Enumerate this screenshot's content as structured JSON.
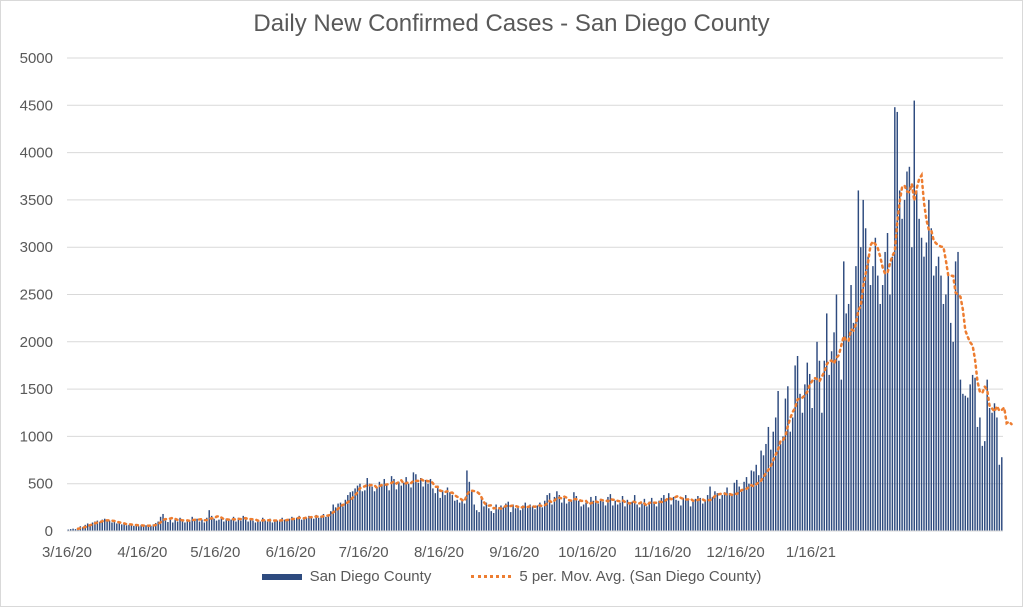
{
  "chart_data": {
    "type": "bar",
    "title": "Daily New Confirmed Cases - San Diego County",
    "xlabel": "",
    "ylabel": "",
    "ylim": [
      0,
      5000
    ],
    "yticks": [
      "0",
      "500",
      "1000",
      "1500",
      "2000",
      "2500",
      "3000",
      "3500",
      "4000",
      "4500",
      "5000"
    ],
    "xticks": [
      "3/16/20",
      "4/16/20",
      "5/16/20",
      "6/16/20",
      "7/16/20",
      "8/16/20",
      "9/16/20",
      "10/16/20",
      "11/16/20",
      "12/16/20",
      "1/16/21"
    ],
    "start_date": "3/16/20",
    "legend_position": "bottom",
    "colors": {
      "bars": "#2e4b7f",
      "moving_average": "#ed7d31",
      "grid": "#d9d9d9"
    },
    "series": [
      {
        "name": "San Diego County",
        "kind": "bar",
        "values": [
          15,
          20,
          25,
          20,
          35,
          50,
          40,
          65,
          80,
          70,
          90,
          100,
          110,
          95,
          120,
          130,
          105,
          110,
          90,
          95,
          80,
          85,
          70,
          75,
          60,
          65,
          70,
          55,
          60,
          50,
          65,
          55,
          60,
          50,
          55,
          70,
          85,
          100,
          150,
          180,
          110,
          95,
          120,
          90,
          130,
          100,
          140,
          110,
          90,
          120,
          100,
          150,
          110,
          130,
          100,
          120,
          90,
          140,
          220,
          160,
          130,
          110,
          120,
          140,
          100,
          130,
          110,
          120,
          150,
          100,
          140,
          110,
          160,
          120,
          100,
          130,
          110,
          90,
          120,
          100,
          140,
          110,
          100,
          130,
          90,
          120,
          110,
          100,
          140,
          120,
          110,
          130,
          150,
          120,
          140,
          160,
          120,
          130,
          140,
          160,
          150,
          130,
          170,
          140,
          160,
          180,
          150,
          170,
          210,
          280,
          250,
          290,
          300,
          260,
          330,
          380,
          410,
          420,
          450,
          480,
          500,
          420,
          430,
          560,
          500,
          470,
          420,
          460,
          520,
          480,
          550,
          500,
          430,
          580,
          550,
          440,
          520,
          480,
          510,
          570,
          500,
          460,
          620,
          600,
          510,
          560,
          470,
          540,
          500,
          550,
          450,
          400,
          480,
          350,
          430,
          380,
          460,
          410,
          380,
          320,
          330,
          300,
          340,
          290,
          640,
          520,
          420,
          280,
          220,
          200,
          350,
          260,
          300,
          240,
          210,
          190,
          280,
          230,
          270,
          250,
          290,
          310,
          200,
          280,
          240,
          260,
          220,
          270,
          300,
          250,
          280,
          260,
          230,
          270,
          300,
          250,
          320,
          380,
          400,
          280,
          360,
          420,
          380,
          300,
          350,
          290,
          310,
          330,
          410,
          370,
          320,
          260,
          280,
          300,
          250,
          360,
          320,
          370,
          290,
          340,
          310,
          270,
          360,
          390,
          270,
          320,
          280,
          300,
          370,
          260,
          330,
          290,
          310,
          380,
          280,
          250,
          290,
          340,
          260,
          310,
          350,
          300,
          260,
          320,
          350,
          380,
          330,
          400,
          280,
          360,
          330,
          320,
          270,
          350,
          380,
          330,
          260,
          310,
          340,
          370,
          350,
          290,
          330,
          380,
          470,
          360,
          420,
          400,
          340,
          380,
          410,
          460,
          400,
          380,
          510,
          540,
          470,
          430,
          520,
          570,
          500,
          640,
          630,
          700,
          590,
          850,
          800,
          920,
          1100,
          860,
          1050,
          1200,
          1480,
          920,
          1000,
          1400,
          1530,
          1050,
          1200,
          1750,
          1850,
          1450,
          1250,
          1550,
          1780,
          1660,
          1300,
          1600,
          2000,
          1800,
          1250,
          1800,
          2300,
          1650,
          1900,
          2100,
          2500,
          1800,
          1600,
          2850,
          2300,
          2400,
          2600,
          2200,
          2800,
          3600,
          3000,
          3500,
          3200,
          2900,
          2600,
          2800,
          3100,
          2700,
          2400,
          2600,
          2950,
          3150,
          2500,
          2900,
          4480,
          4430,
          3600,
          3300,
          3500,
          3800,
          3850,
          3000,
          4550,
          3600,
          3300,
          3100,
          2900,
          3050,
          3500,
          3200,
          2700,
          2800,
          2900,
          2700,
          2400,
          2500,
          2700,
          2200,
          2000,
          2850,
          2950,
          1600,
          1450,
          1430,
          1410,
          1550,
          1650,
          1620,
          1100,
          1200,
          900,
          950,
          1600,
          1300,
          1250,
          1350,
          1200,
          700,
          780
        ]
      },
      {
        "name": "5 per. Mov. Avg. (San Diego County)",
        "kind": "line",
        "values": [
          null,
          null,
          null,
          null,
          23,
          30,
          34,
          42,
          54,
          61,
          69,
          81,
          90,
          93,
          103,
          111,
          112,
          112,
          109,
          106,
          96,
          92,
          84,
          81,
          72,
          71,
          69,
          65,
          63,
          60,
          60,
          57,
          58,
          56,
          57,
          57,
          64,
          72,
          92,
          117,
          125,
          127,
          131,
          139,
          129,
          116,
          120,
          112,
          114,
          112,
          108,
          116,
          118,
          120,
          122,
          126,
          114,
          116,
          128,
          135,
          132,
          152,
          156,
          142,
          126,
          124,
          120,
          124,
          124,
          122,
          128,
          126,
          132,
          136,
          124,
          126,
          124,
          122,
          110,
          110,
          112,
          114,
          114,
          114,
          112,
          110,
          112,
          110,
          114,
          110,
          116,
          120,
          126,
          128,
          132,
          140,
          138,
          134,
          142,
          144,
          146,
          148,
          154,
          150,
          150,
          156,
          160,
          164,
          174,
          198,
          212,
          234,
          264,
          276,
          286,
          304,
          326,
          352,
          378,
          408,
          452,
          464,
          472,
          488,
          482,
          488,
          482,
          456,
          474,
          486,
          486,
          492,
          496,
          508,
          522,
          502,
          518,
          536,
          500,
          504,
          516,
          506,
          530,
          530,
          530,
          550,
          534,
          538,
          524,
          530,
          506,
          468,
          466,
          426,
          422,
          412,
          420,
          406,
          406,
          378,
          362,
          348,
          328,
          316,
          382,
          420,
          426,
          422,
          416,
          396,
          356,
          304,
          274,
          268,
          272,
          240,
          242,
          244,
          236,
          246,
          266,
          262,
          264,
          270,
          264,
          256,
          244,
          254,
          258,
          254,
          262,
          260,
          256,
          266,
          270,
          264,
          270,
          292,
          318,
          302,
          322,
          350,
          352,
          344,
          364,
          352,
          326,
          320,
          338,
          336,
          332,
          318,
          318,
          318,
          284,
          294,
          302,
          312,
          304,
          330,
          324,
          324,
          314,
          338,
          330,
          330,
          318,
          314,
          324,
          308,
          300,
          290,
          314,
          306,
          296,
          292,
          308,
          290,
          268,
          296,
          306,
          300,
          298,
          308,
          306,
          308,
          330,
          352,
          336,
          346,
          362,
          370,
          350,
          340,
          332,
          334,
          342,
          320,
          322,
          328,
          336,
          334,
          320,
          326,
          326,
          340,
          370,
          384,
          390,
          396,
          396,
          384,
          392,
          382,
          394,
          392,
          410,
          432,
          440,
          446,
          464,
          484,
          472,
          494,
          514,
          532,
          568,
          614,
          646,
          688,
          750,
          808,
          862,
          954,
          960,
          1004,
          1106,
          1192,
          1258,
          1302,
          1390,
          1402,
          1410,
          1434,
          1472,
          1544,
          1586,
          1618,
          1606,
          1582,
          1632,
          1680,
          1760,
          1800,
          1802,
          1770,
          1830,
          1860,
          1964,
          2060,
          2010,
          2012,
          2130,
          2120,
          2186,
          2334,
          2380,
          2580,
          2720,
          2840,
          3020,
          3060,
          3032,
          2990,
          2900,
          2786,
          2720,
          2730,
          2828,
          2906,
          2960,
          3260,
          3480,
          3636,
          3652,
          3590,
          3580,
          3670,
          3490,
          3620,
          3720,
          3760,
          3470,
          3290,
          3184,
          3180,
          3070,
          3040,
          3020,
          3006,
          3002,
          2860,
          2700,
          2700,
          2696,
          2520,
          2500,
          2476,
          2340,
          2120,
          2052,
          1994,
          1962,
          1812,
          1582,
          1470,
          1460,
          1526,
          1490,
          1318,
          1296,
          1262,
          1320,
          1270,
          1280,
          1304,
          1140,
          1156,
          1130
        ]
      }
    ]
  }
}
